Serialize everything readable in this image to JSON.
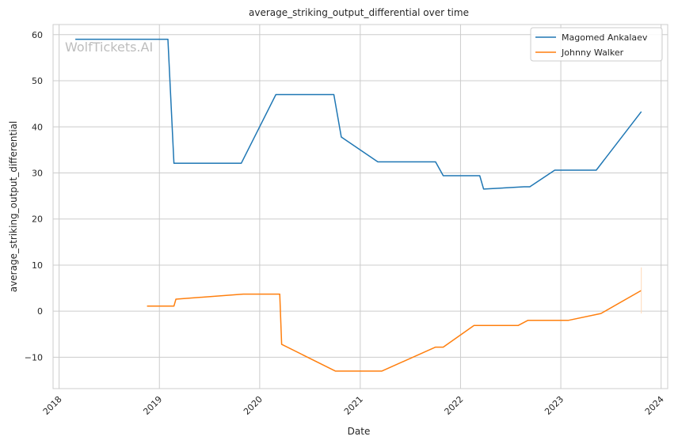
{
  "chart_data": {
    "type": "line",
    "title": "average_striking_output_differential over time",
    "xlabel": "Date",
    "ylabel": "average_striking_output_differential",
    "watermark": "WolfTickets.AI",
    "xlim": [
      "2017-12-10",
      "2024-01-25"
    ],
    "ylim": [
      -16.8,
      62.2
    ],
    "x_ticks": [
      "2018",
      "2019",
      "2020",
      "2021",
      "2022",
      "2023",
      "2024"
    ],
    "y_ticks": [
      -10,
      0,
      10,
      20,
      30,
      40,
      50,
      60
    ],
    "grid": true,
    "legend_position": "top-right",
    "series": [
      {
        "name": "Magomed Ankalaev",
        "color": "#1f77b4",
        "points": [
          [
            "2018-03-01",
            59.0
          ],
          [
            "2019-02-01",
            59.0
          ],
          [
            "2019-02-23",
            32.1
          ],
          [
            "2019-10-26",
            32.1
          ],
          [
            "2020-02-29",
            47.0
          ],
          [
            "2020-09-27",
            47.0
          ],
          [
            "2020-10-24",
            37.8
          ],
          [
            "2021-03-06",
            32.4
          ],
          [
            "2021-10-02",
            32.4
          ],
          [
            "2021-10-30",
            29.4
          ],
          [
            "2022-03-12",
            29.4
          ],
          [
            "2022-03-26",
            26.5
          ],
          [
            "2022-08-20",
            27.0
          ],
          [
            "2022-09-10",
            27.0
          ],
          [
            "2022-12-10",
            30.6
          ],
          [
            "2023-05-10",
            30.6
          ],
          [
            "2023-10-21",
            43.3
          ]
        ]
      },
      {
        "name": "Johnny Walker",
        "color": "#ff7f0e",
        "points": [
          [
            "2018-11-17",
            1.1
          ],
          [
            "2019-02-23",
            1.1
          ],
          [
            "2019-03-02",
            2.6
          ],
          [
            "2019-11-02",
            3.7
          ],
          [
            "2020-03-14",
            3.7
          ],
          [
            "2020-03-21",
            -7.2
          ],
          [
            "2020-10-03",
            -13.0
          ],
          [
            "2021-03-20",
            -13.0
          ],
          [
            "2021-10-02",
            -7.8
          ],
          [
            "2021-10-30",
            -7.8
          ],
          [
            "2022-02-19",
            -3.1
          ],
          [
            "2022-07-30",
            -3.1
          ],
          [
            "2022-09-03",
            -2.0
          ],
          [
            "2023-01-28",
            -2.0
          ],
          [
            "2023-05-27",
            -0.5
          ],
          [
            "2023-10-21",
            4.5
          ]
        ]
      }
    ]
  }
}
